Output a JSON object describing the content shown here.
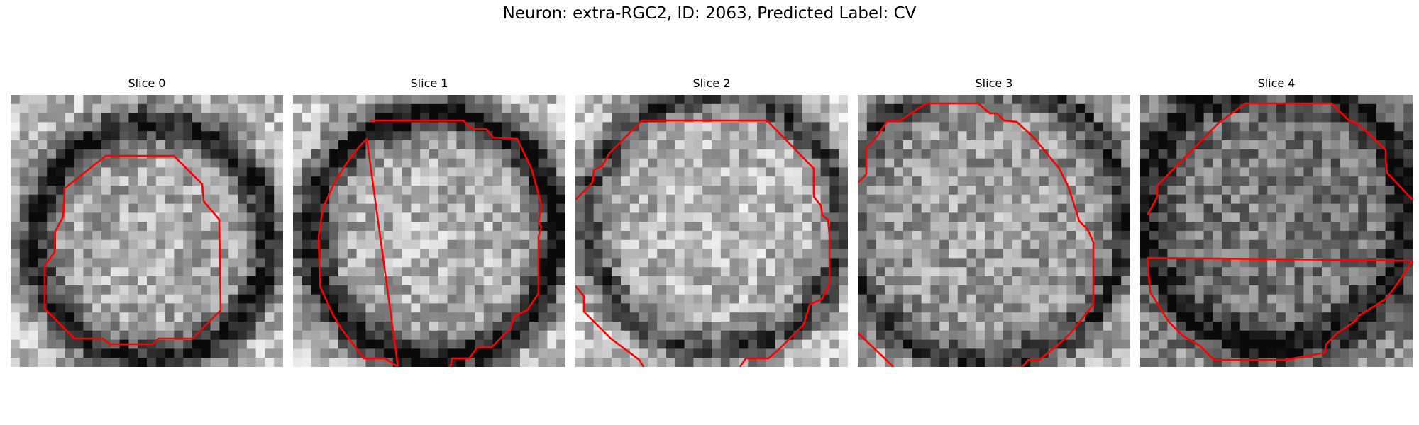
{
  "figure": {
    "title": "Neuron: extra-RGC2, ID: 2063, Predicted Label: CV",
    "contour_color": "#ff0000"
  },
  "slices": [
    {
      "label": "Slice 0"
    },
    {
      "label": "Slice 1"
    },
    {
      "label": "Slice 2"
    },
    {
      "label": "Slice 3"
    },
    {
      "label": "Slice 4"
    }
  ]
}
